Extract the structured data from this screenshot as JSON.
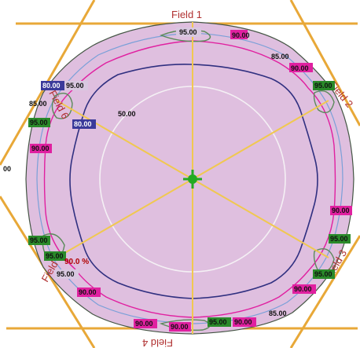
{
  "fields": {
    "field1": "Field 1",
    "field2": "Field 2",
    "field3": "Field 3",
    "field4": "Field 4",
    "field5": "Field 5",
    "field6": "Field 6"
  },
  "contour_labels": {
    "center": "50.00",
    "l1": "95.00",
    "l2": "85.00",
    "l3": "90.00",
    "l4": "90.00",
    "l5": "95.00",
    "l6": "80.00",
    "l7": "95.00",
    "l8": "85.00",
    "l9": "95.00",
    "l10": "80.00",
    "l11": "90.00",
    "l12": "00",
    "l13": "95.00",
    "l14": "95.00",
    "l15": "95.00",
    "l16": "90.00",
    "l17": "95.00",
    "l18": "90.00",
    "l19": "85.00",
    "l20": "90.00",
    "l21": "95.00",
    "l22": "90.00",
    "l23": "90.00",
    "l24": "95.00",
    "l25": "90.00"
  },
  "percent_label": "90.0 %",
  "colors": {
    "interior": "#dfbfdf",
    "hex_line": "#e8a838",
    "contour_90": "#e020a0",
    "contour_80": "#303080",
    "contour_85": "#7aa0d8",
    "contour_95": "#5a8a5a",
    "crosshair": "#22aa22",
    "spokes": "#f0c850",
    "field_text": "#b03030"
  }
}
